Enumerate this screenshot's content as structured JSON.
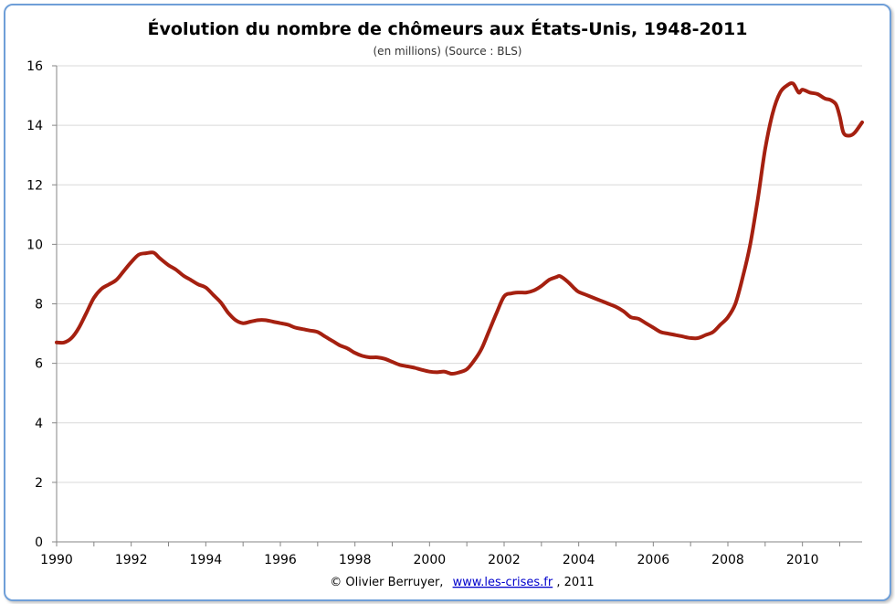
{
  "chart_data": {
    "type": "line",
    "title": "Évolution du nombre de chômeurs aux États-Unis, 1948-2011",
    "subtitle": "(en millions) (Source : BLS)",
    "xlabel": "",
    "ylabel": "",
    "xlim": [
      1990,
      2011.6
    ],
    "ylim": [
      0,
      16
    ],
    "x_ticks": [
      "1990",
      "1992",
      "1994",
      "1996",
      "1998",
      "2000",
      "2002",
      "2004",
      "2006",
      "2008",
      "2010"
    ],
    "y_ticks": [
      "0",
      "2",
      "4",
      "6",
      "8",
      "10",
      "12",
      "14",
      "16"
    ],
    "grid": true,
    "legend": "none",
    "line_color": "#a52010",
    "series": [
      {
        "x": [
          1990.0,
          1990.2,
          1990.4,
          1990.6,
          1990.8,
          1991.0,
          1991.2,
          1991.4,
          1991.6,
          1991.8,
          1992.0,
          1992.2,
          1992.4,
          1992.6,
          1992.75,
          1993.0,
          1993.2,
          1993.4,
          1993.6,
          1993.8,
          1994.0,
          1994.2,
          1994.4,
          1994.6,
          1994.8,
          1995.0,
          1995.2,
          1995.4,
          1995.6,
          1995.8,
          1996.0,
          1996.2,
          1996.4,
          1996.6,
          1996.8,
          1997.0,
          1997.2,
          1997.4,
          1997.6,
          1997.8,
          1998.0,
          1998.2,
          1998.4,
          1998.6,
          1998.8,
          1999.0,
          1999.2,
          1999.4,
          1999.6,
          1999.8,
          2000.0,
          2000.2,
          2000.4,
          2000.6,
          2000.8,
          2001.0,
          2001.2,
          2001.4,
          2001.6,
          2001.8,
          2002.0,
          2002.2,
          2002.4,
          2002.6,
          2002.8,
          2003.0,
          2003.2,
          2003.4,
          2003.5,
          2003.7,
          2003.9,
          2004.0,
          2004.2,
          2004.4,
          2004.6,
          2004.8,
          2005.0,
          2005.2,
          2005.4,
          2005.6,
          2005.8,
          2006.0,
          2006.2,
          2006.4,
          2006.6,
          2006.8,
          2007.0,
          2007.2,
          2007.4,
          2007.6,
          2007.8,
          2008.0,
          2008.2,
          2008.4,
          2008.6,
          2008.8,
          2009.0,
          2009.2,
          2009.4,
          2009.6,
          2009.75,
          2009.9,
          2010.0,
          2010.2,
          2010.4,
          2010.6,
          2010.75,
          2010.9,
          2011.0,
          2011.1,
          2011.25,
          2011.4,
          2011.6
        ],
        "y": [
          6.7,
          6.7,
          6.85,
          7.2,
          7.7,
          8.2,
          8.5,
          8.65,
          8.8,
          9.1,
          9.4,
          9.65,
          9.7,
          9.72,
          9.55,
          9.3,
          9.15,
          8.95,
          8.8,
          8.65,
          8.55,
          8.3,
          8.05,
          7.7,
          7.45,
          7.35,
          7.4,
          7.45,
          7.45,
          7.4,
          7.35,
          7.3,
          7.2,
          7.15,
          7.1,
          7.05,
          6.9,
          6.75,
          6.6,
          6.5,
          6.35,
          6.25,
          6.2,
          6.2,
          6.15,
          6.05,
          5.95,
          5.9,
          5.85,
          5.78,
          5.72,
          5.7,
          5.72,
          5.65,
          5.7,
          5.8,
          6.1,
          6.5,
          7.1,
          7.7,
          8.25,
          8.35,
          8.38,
          8.38,
          8.45,
          8.6,
          8.8,
          8.9,
          8.93,
          8.75,
          8.5,
          8.4,
          8.3,
          8.2,
          8.1,
          8.0,
          7.9,
          7.75,
          7.55,
          7.5,
          7.35,
          7.2,
          7.05,
          7.0,
          6.95,
          6.9,
          6.85,
          6.85,
          6.95,
          7.05,
          7.3,
          7.55,
          8.0,
          8.9,
          10.0,
          11.5,
          13.2,
          14.4,
          15.1,
          15.35,
          15.4,
          15.1,
          15.2,
          15.1,
          15.05,
          14.9,
          14.85,
          14.7,
          14.3,
          13.75,
          13.65,
          13.75,
          14.1
        ]
      }
    ]
  },
  "credit": {
    "prefix": "© Olivier Berruyer,",
    "link": "www.les-crises.fr",
    "suffix": ", 2011"
  }
}
